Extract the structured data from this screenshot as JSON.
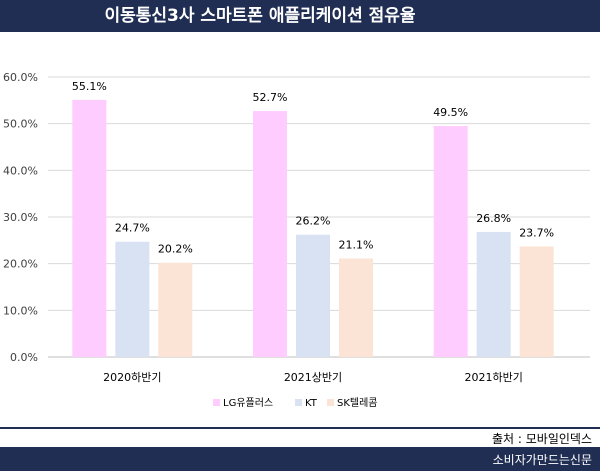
{
  "title": "이동통신3사 스마트폰 애플리케이션 점유율",
  "source": "출처 : 모바일인덱스",
  "footer": "소비자가만드는신문",
  "colors": {
    "header_bg": "#1f2e52",
    "lg": "#ffccff",
    "kt": "#d9e2f3",
    "sk": "#fbe4d5"
  },
  "chart_data": {
    "type": "bar",
    "categories": [
      "2020하반기",
      "2021상반기",
      "2021하반기"
    ],
    "series": [
      {
        "name": "LG유플러스",
        "values": [
          55.1,
          52.7,
          49.5
        ]
      },
      {
        "name": "KT",
        "values": [
          24.7,
          26.2,
          26.8
        ]
      },
      {
        "name": "SK텔레콤",
        "values": [
          20.2,
          21.1,
          23.7
        ]
      }
    ],
    "ylim": [
      0,
      60
    ],
    "yticks": [
      0,
      10,
      20,
      30,
      40,
      50,
      60
    ],
    "ytick_labels": [
      "0.0%",
      "10.0%",
      "20.0%",
      "30.0%",
      "40.0%",
      "50.0%",
      "60.0%"
    ],
    "data_labels": [
      [
        "55.1%",
        "52.7%",
        "49.5%"
      ],
      [
        "24.7%",
        "26.2%",
        "26.8%"
      ],
      [
        "20.2%",
        "21.1%",
        "23.7%"
      ]
    ],
    "grid": true,
    "legend_position": "bottom"
  }
}
